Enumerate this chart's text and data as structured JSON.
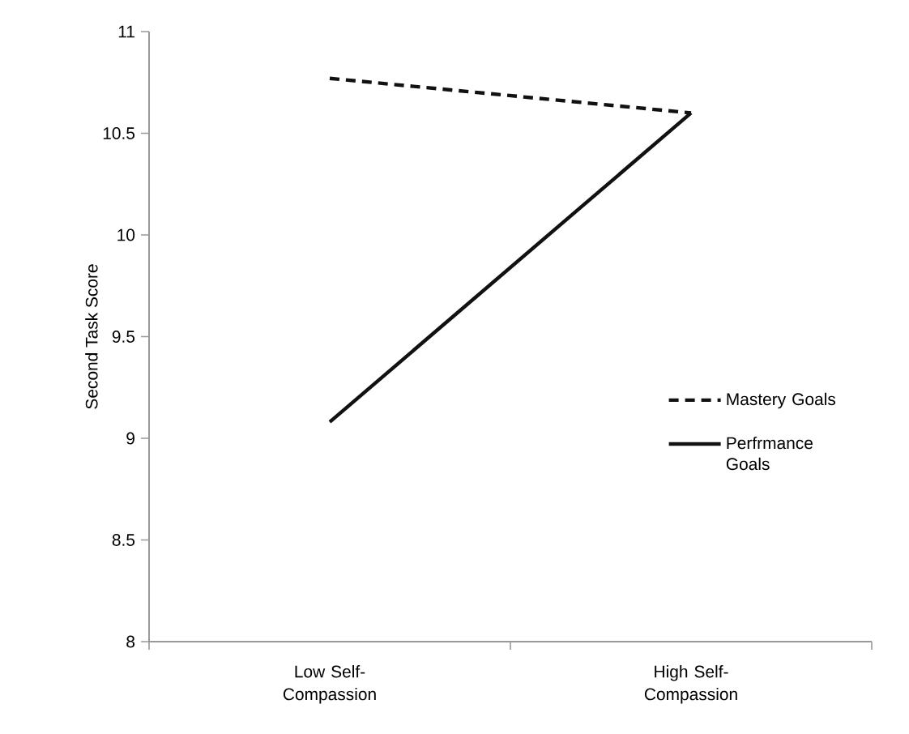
{
  "chart_data": {
    "type": "line",
    "ylabel": "Second Task Score",
    "categories": [
      "Low Self-Compassion",
      "High Self-Compassion"
    ],
    "series": [
      {
        "name": "Mastery Goals",
        "color": "#111111",
        "line_style": "dashed",
        "values": [
          10.77,
          10.6
        ]
      },
      {
        "name": "Perfrmance Goals",
        "color": "#111111",
        "line_style": "solid",
        "values": [
          9.08,
          10.6
        ]
      }
    ],
    "ylim": [
      8,
      11
    ],
    "yticks": [
      8,
      8.5,
      9,
      9.5,
      10,
      10.5,
      11
    ],
    "legend": "right",
    "marker": "none",
    "grid": false
  }
}
